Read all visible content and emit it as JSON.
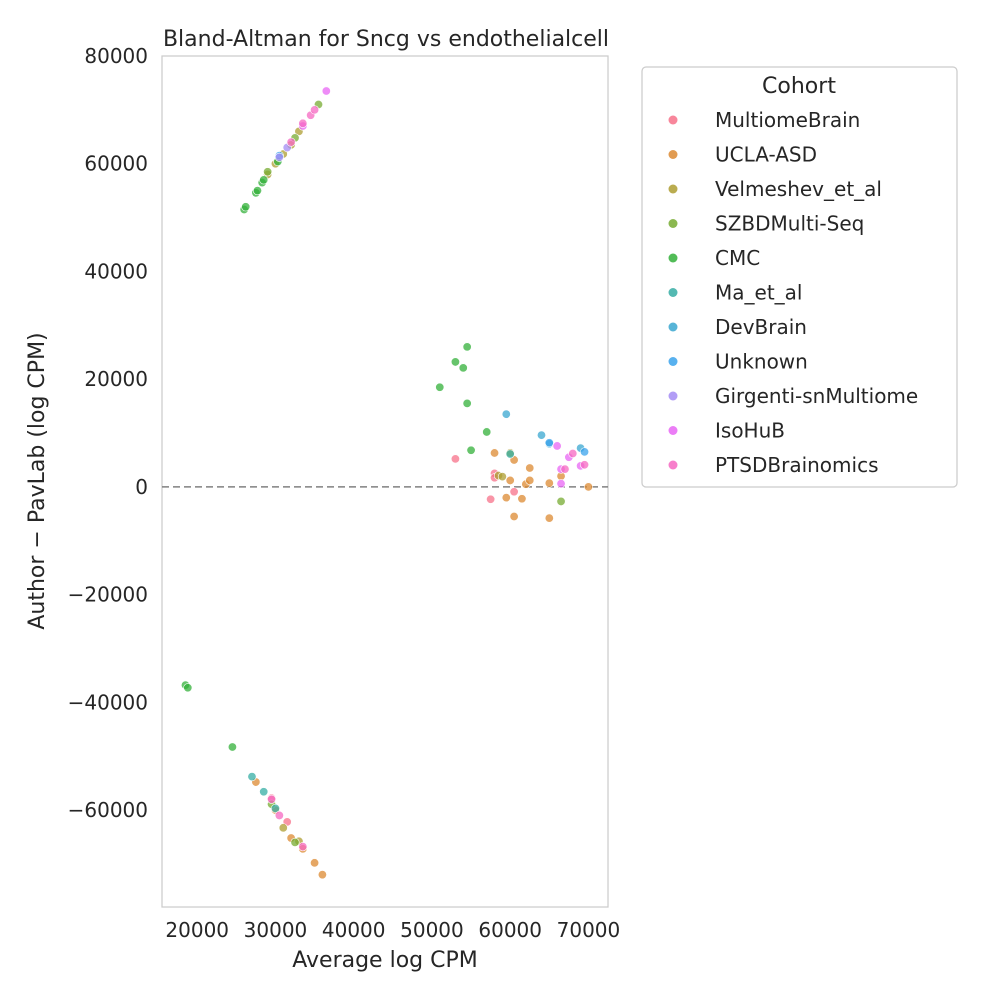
{
  "chart_data": {
    "type": "scatter",
    "title": "Bland-Altman for Sncg vs endothelialcell",
    "xlabel": "Average log CPM",
    "ylabel": "Author − PavLab (log CPM)",
    "xlim": [
      15500,
      72500
    ],
    "ylim": [
      -78000,
      80000
    ],
    "xticks": [
      20000,
      30000,
      40000,
      50000,
      60000,
      70000
    ],
    "yticks": [
      -60000,
      -40000,
      -20000,
      0,
      20000,
      40000,
      60000,
      80000
    ],
    "xtick_labels": [
      "20000",
      "30000",
      "40000",
      "50000",
      "60000",
      "70000"
    ],
    "ytick_labels": [
      "−60000",
      "−40000",
      "−20000",
      "0",
      "20000",
      "40000",
      "60000",
      "80000"
    ],
    "reference_line": {
      "y": 0,
      "style": "dashed",
      "color": "#808080"
    },
    "grid": false,
    "legend": {
      "title": "Cohort",
      "placement": "outside-top-right"
    },
    "series": [
      {
        "name": "MultiomeBrain",
        "color": "#f77189",
        "points": [
          [
            53000,
            5200
          ],
          [
            57500,
            -2300
          ],
          [
            58000,
            2500
          ],
          [
            58000,
            1700
          ],
          [
            60500,
            -900
          ],
          [
            29500,
            -57800
          ],
          [
            31500,
            -62200
          ]
        ]
      },
      {
        "name": "UCLA-ASD",
        "color": "#dc8932",
        "points": [
          [
            58000,
            6300
          ],
          [
            59500,
            -2000
          ],
          [
            60000,
            1200
          ],
          [
            60500,
            5000
          ],
          [
            60500,
            -5500
          ],
          [
            61500,
            -2200
          ],
          [
            62000,
            500
          ],
          [
            62500,
            1200
          ],
          [
            62500,
            3500
          ],
          [
            65000,
            700
          ],
          [
            65000,
            -5800
          ],
          [
            66500,
            2000
          ],
          [
            70000,
            0
          ],
          [
            27500,
            -54800
          ],
          [
            30000,
            -60000
          ],
          [
            32000,
            -65200
          ],
          [
            33500,
            -67200
          ],
          [
            35000,
            -69800
          ],
          [
            36000,
            -72000
          ]
        ]
      },
      {
        "name": "Velmeshev_et_al",
        "color": "#ae9d31",
        "points": [
          [
            58500,
            2100
          ],
          [
            59000,
            1900
          ],
          [
            60000,
            6300
          ],
          [
            29000,
            58000
          ],
          [
            30000,
            60000
          ],
          [
            31000,
            61800
          ],
          [
            32000,
            63500
          ],
          [
            33000,
            66000
          ],
          [
            31000,
            -63300
          ],
          [
            33000,
            -65800
          ]
        ]
      },
      {
        "name": "SZBDMulti-Seq",
        "color": "#77ab31",
        "points": [
          [
            66500,
            -2700
          ],
          [
            29000,
            58500
          ],
          [
            32500,
            64800
          ],
          [
            35500,
            71000
          ],
          [
            29500,
            -58900
          ],
          [
            32500,
            -66000
          ]
        ]
      },
      {
        "name": "CMC",
        "color": "#33b039",
        "points": [
          [
            51000,
            18500
          ],
          [
            53000,
            23200
          ],
          [
            54000,
            22100
          ],
          [
            54500,
            26000
          ],
          [
            54500,
            15500
          ],
          [
            55000,
            6800
          ],
          [
            57000,
            10200
          ],
          [
            18500,
            -36800
          ],
          [
            18800,
            -37300
          ],
          [
            24500,
            -48300
          ],
          [
            26000,
            51500
          ],
          [
            26200,
            52000
          ],
          [
            27500,
            54600
          ],
          [
            27700,
            55000
          ],
          [
            28300,
            56500
          ],
          [
            28500,
            57000
          ],
          [
            30300,
            60400
          ]
        ]
      },
      {
        "name": "Ma_et_al",
        "color": "#36ada4",
        "points": [
          [
            60000,
            6100
          ],
          [
            27000,
            -53800
          ],
          [
            28500,
            -56600
          ],
          [
            30000,
            -59700
          ]
        ]
      },
      {
        "name": "DevBrain",
        "color": "#39a7d0",
        "points": [
          [
            59500,
            13500
          ],
          [
            64000,
            9600
          ],
          [
            65000,
            8000
          ],
          [
            69000,
            7200
          ]
        ]
      },
      {
        "name": "Unknown",
        "color": "#3ba3ec",
        "points": [
          [
            65000,
            8200
          ],
          [
            69500,
            6500
          ],
          [
            30500,
            61500
          ]
        ]
      },
      {
        "name": "Girgenti-snMultiome",
        "color": "#a48cf4",
        "points": [
          [
            30500,
            61200
          ],
          [
            31500,
            63000
          ]
        ]
      },
      {
        "name": "IsoHuB",
        "color": "#e866f4",
        "points": [
          [
            36500,
            73500
          ],
          [
            66000,
            7600
          ],
          [
            66500,
            3300
          ],
          [
            66500,
            600
          ],
          [
            67500,
            5500
          ],
          [
            69000,
            3900
          ],
          [
            33500,
            67000
          ]
        ]
      },
      {
        "name": "PTSDBrainomics",
        "color": "#f668c2",
        "points": [
          [
            67000,
            3300
          ],
          [
            68000,
            6200
          ],
          [
            69500,
            4100
          ],
          [
            32000,
            64000
          ],
          [
            33500,
            67500
          ],
          [
            34500,
            69000
          ],
          [
            35000,
            70000
          ],
          [
            30500,
            -61000
          ],
          [
            33500,
            -66800
          ],
          [
            29500,
            -58000
          ]
        ]
      }
    ]
  }
}
